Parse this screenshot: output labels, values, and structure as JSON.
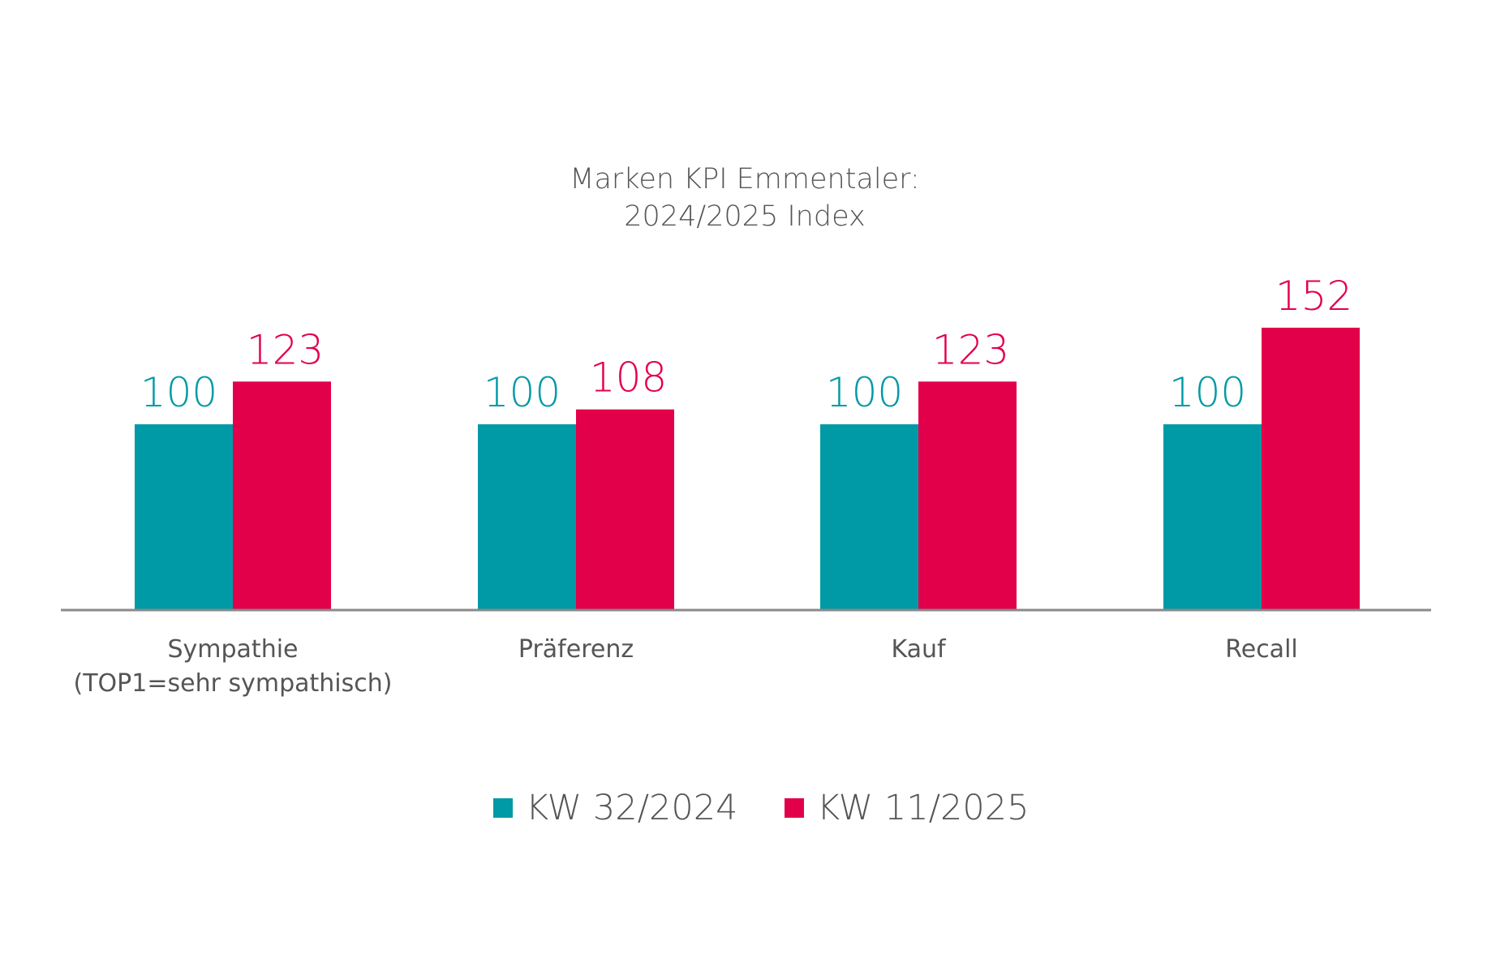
{
  "chart_data": {
    "type": "bar",
    "title_lines": [
      "Marken KPI Emmentaler:",
      "2024/2025 Index"
    ],
    "categories": [
      [
        "Sympathie",
        "(TOP1=sehr sympathisch)"
      ],
      [
        "Präferenz"
      ],
      [
        "Kauf"
      ],
      [
        "Recall"
      ]
    ],
    "series": [
      {
        "name": "KW 32/2024",
        "color": "#009aa6",
        "values": [
          100,
          100,
          100,
          100
        ]
      },
      {
        "name": "KW 11/2025",
        "color": "#e2004a",
        "values": [
          123,
          108,
          123,
          152
        ]
      }
    ],
    "ylim": [
      0,
      160
    ],
    "grid": false,
    "legend_position": "bottom-center",
    "axis_color": "#8a8a8a"
  }
}
